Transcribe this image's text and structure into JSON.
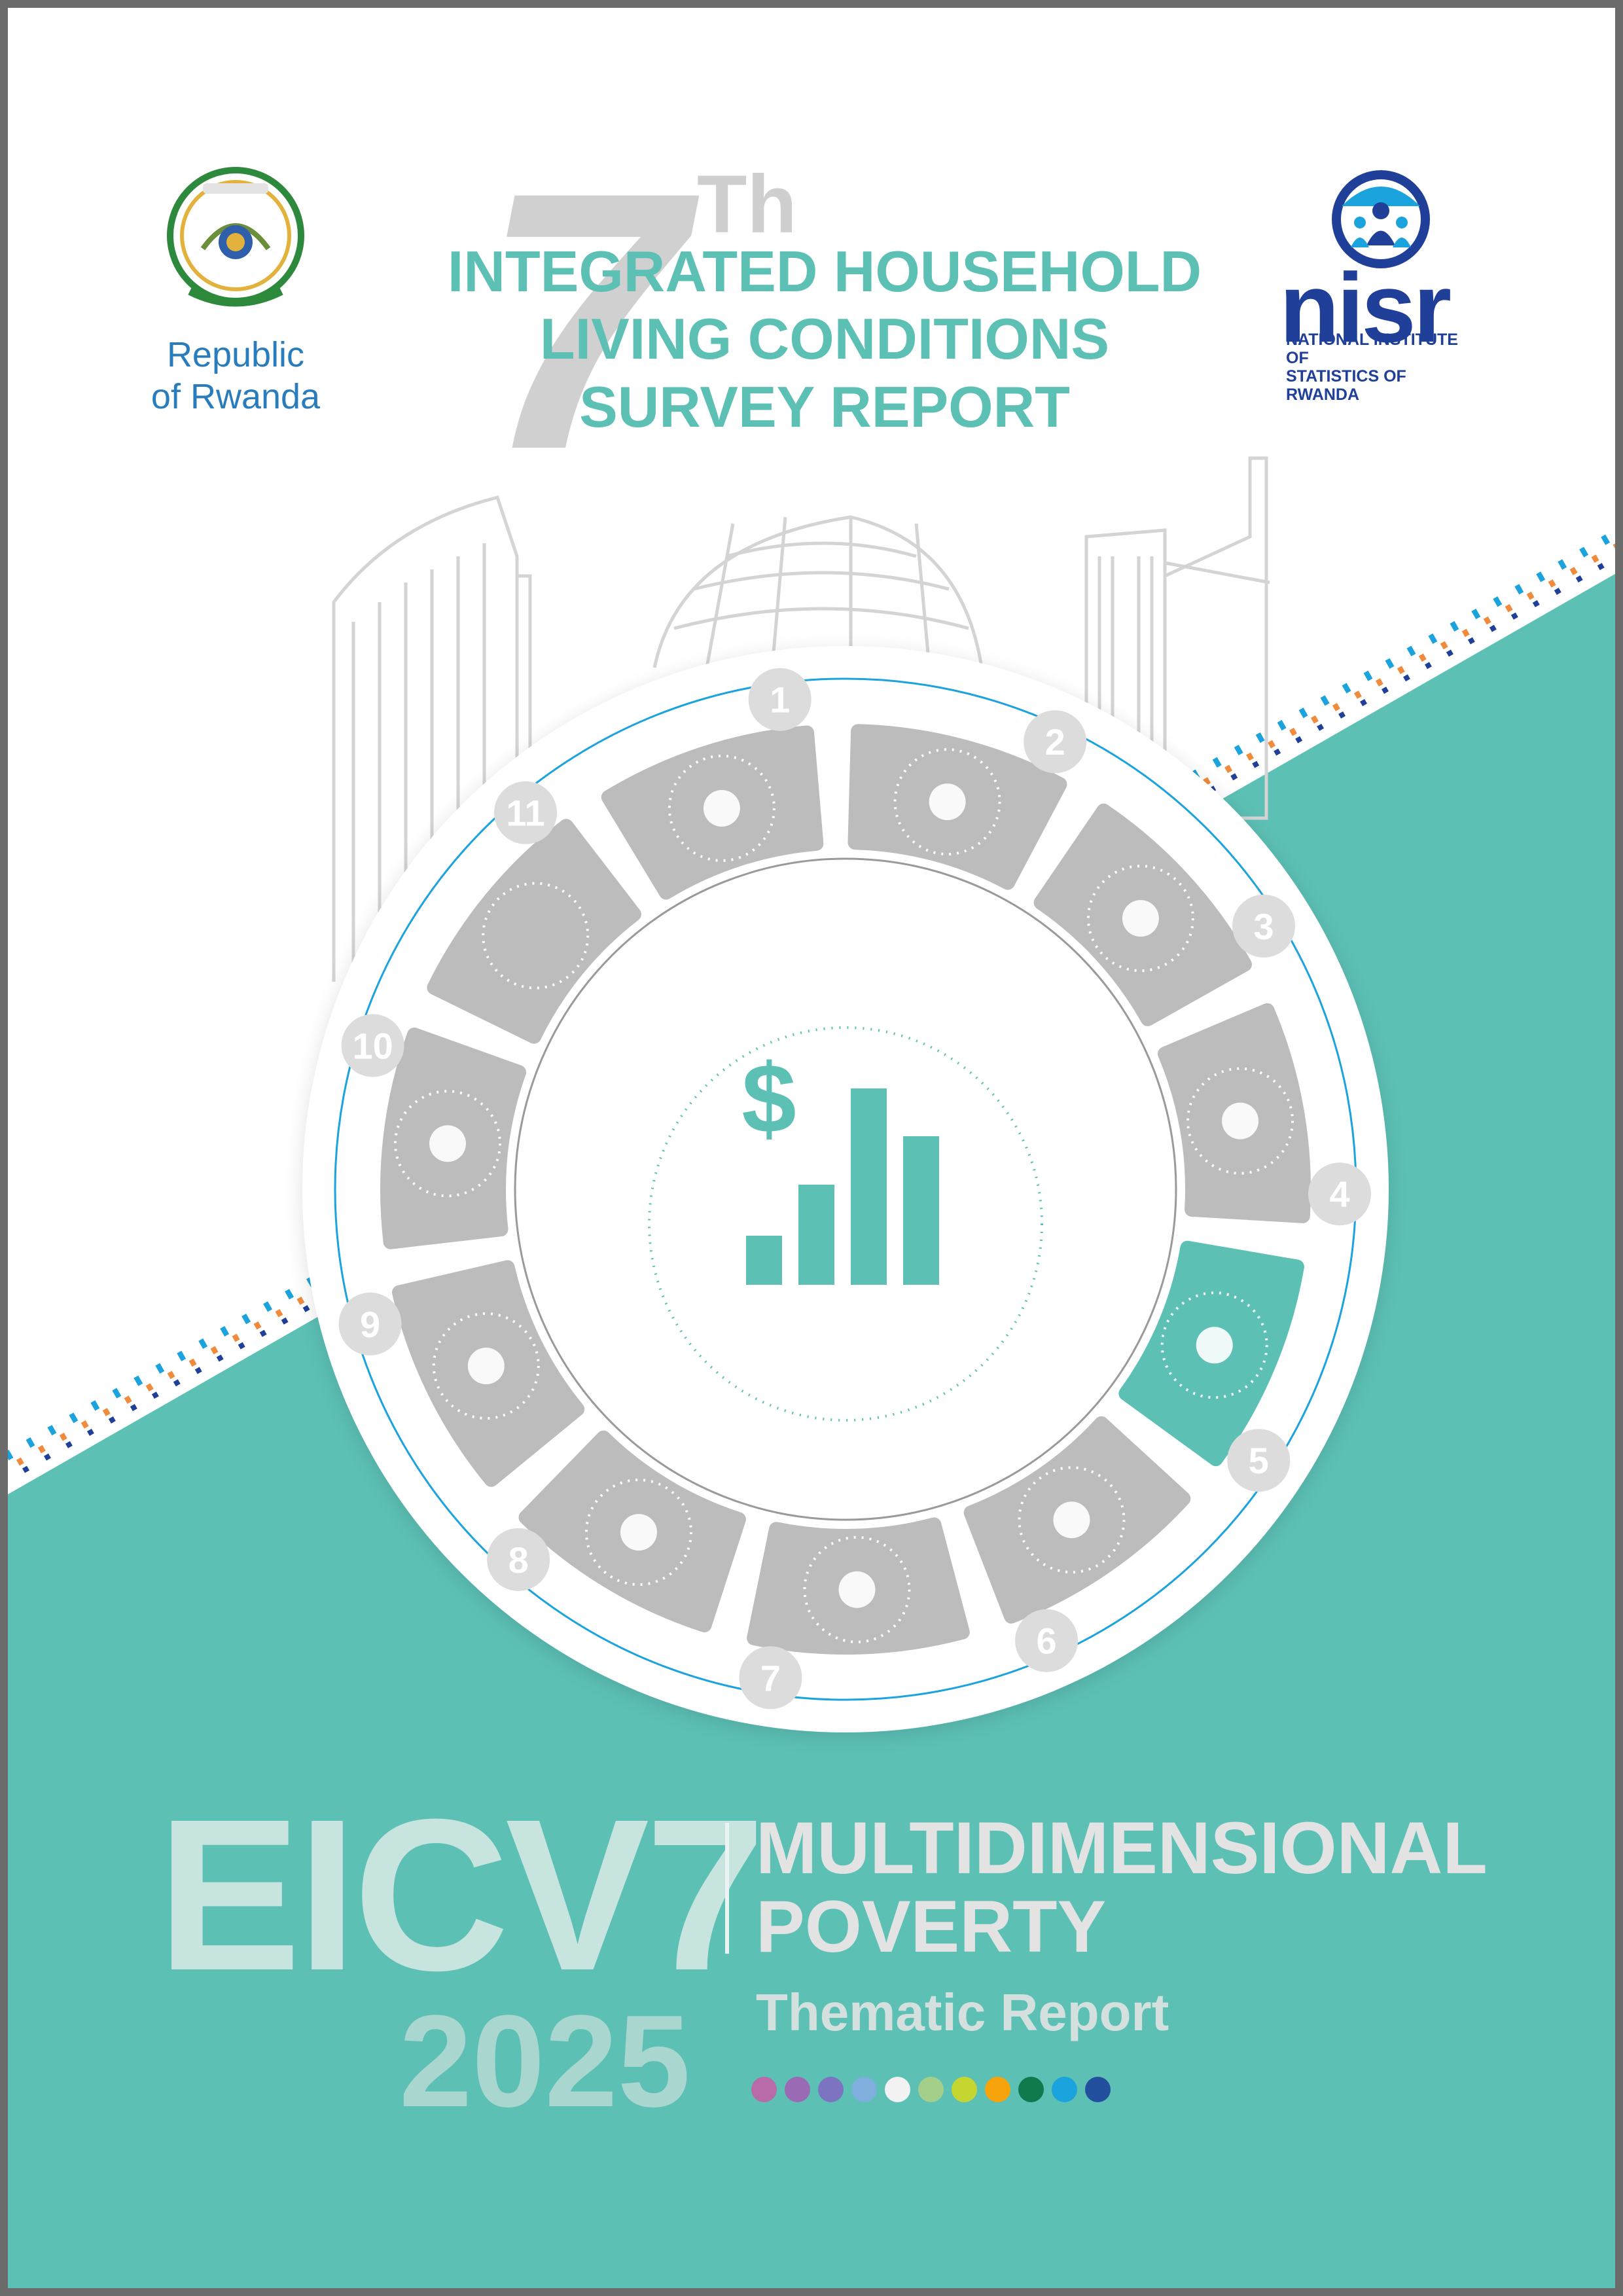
{
  "header": {
    "number": "7",
    "ordinal_suffix": "Th",
    "title_lines": [
      "INTEGRATED HOUSEHOLD",
      "LIVING CONDITIONS",
      "SURVEY REPORT"
    ]
  },
  "logos": {
    "left": {
      "text_line1": "Republic",
      "text_line2": "of Rwanda",
      "icon": "rwanda-coat-of-arms-icon"
    },
    "right": {
      "wordmark": "nisr",
      "subtitle_line1": "NATIONAL INSTITUTE OF",
      "subtitle_line2": "STATISTICS OF RWANDA",
      "icon": "nisr-people-icon"
    }
  },
  "wheel": {
    "center_icon": "money-bar-chart-icon",
    "center_glyph": "$",
    "segments": [
      {
        "number": "1",
        "icon": "book-icon",
        "active": false
      },
      {
        "number": "2",
        "icon": "fuel-pump-icon",
        "active": false
      },
      {
        "number": "3",
        "icon": "man-woman-icon",
        "active": false
      },
      {
        "number": "4",
        "icon": "parent-child-icon",
        "active": false
      },
      {
        "number": "5",
        "icon": "money-bar-chart-icon",
        "active": true
      },
      {
        "number": "6",
        "icon": "wheat-icon",
        "active": false
      },
      {
        "number": "7",
        "icon": "hammer-bricks-icon",
        "active": false
      },
      {
        "number": "8",
        "icon": "tap-hand-icon",
        "active": false
      },
      {
        "number": "9",
        "icon": "child-ball-icon",
        "active": false
      },
      {
        "number": "10",
        "icon": "no-money-icon",
        "active": false
      },
      {
        "number": "11",
        "icon": "empty-circle-icon",
        "active": false
      }
    ]
  },
  "footer": {
    "code": "EICV7",
    "year": "2025",
    "topic_line1": "MULTIDIMENSIONAL",
    "topic_line2": "POVERTY",
    "subtitle": "Thematic Report",
    "dot_colors": [
      "#b96aa8",
      "#9b6ab5",
      "#7d74c1",
      "#7fb0dd",
      "#f2f2f2",
      "#a3cf8b",
      "#c6d630",
      "#f7a30c",
      "#0f7a4c",
      "#1ba3dd",
      "#22509e"
    ]
  },
  "colors": {
    "teal": "#5cc0b5",
    "segment_gray": "#bcbcbc",
    "badge_gray": "#dcdcdc",
    "navy": "#1f3f99",
    "frame": "#6b6b6b"
  }
}
